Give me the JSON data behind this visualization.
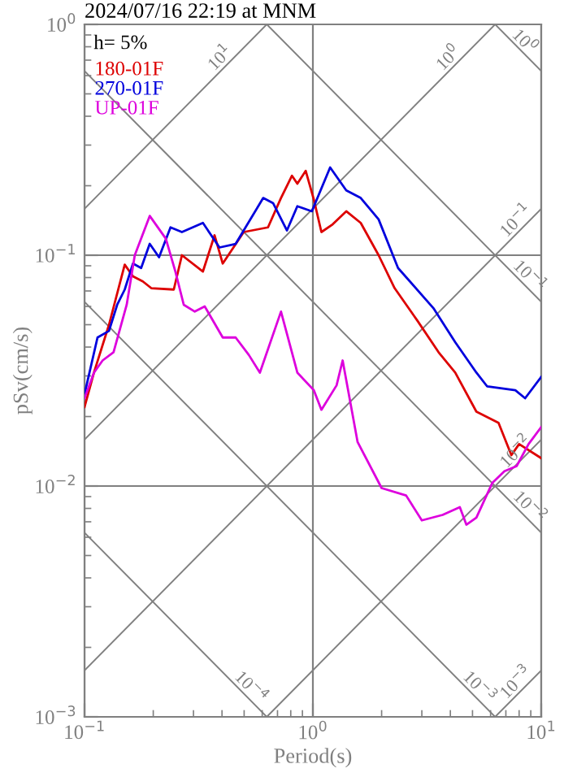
{
  "chart_data": {
    "type": "line",
    "title": "2024/07/16 22:19 at MNM",
    "xlabel": "Period(s)",
    "ylabel": "pSv(cm/s)",
    "log": "xy",
    "grid": true,
    "legend": "top left",
    "line_style": "solid",
    "marker": "none",
    "xlim": [
      0.1,
      10
    ],
    "ylim": [
      0.001,
      1
    ],
    "xticks": [
      {
        "value": 0.1,
        "label": "10$^{−1}$"
      },
      {
        "value": 1,
        "label": "10$^{0}$"
      },
      {
        "value": 10,
        "label": "10$^{1}$"
      }
    ],
    "yticks": [
      {
        "value": 0.001,
        "label": "10$^{−3}$"
      },
      {
        "value": 0.01,
        "label": "10$^{−2}$"
      },
      {
        "value": 0.1,
        "label": "10$^{−1}$"
      },
      {
        "value": 1,
        "label": "10$^{0}$"
      }
    ],
    "annotations": [
      "h= 5%",
      {
        "text": "10$^{1}$",
        "x": 0.42,
        "y": 0.67
      },
      {
        "text": "10$^{0}$",
        "x": 4.2,
        "y": 0.67
      },
      {
        "text": "10$^{0}$",
        "x": 7.9,
        "y": 0.79
      },
      {
        "text": "10$^{−1}$",
        "x": 8.3,
        "y": 0.132
      },
      {
        "text": "10$^{−1}$",
        "x": 8.3,
        "y": 0.076
      },
      {
        "text": "10$^{−2}$",
        "x": 8.3,
        "y": 0.0132
      },
      {
        "text": "10$^{−2}$",
        "x": 8.3,
        "y": 0.0076
      },
      {
        "text": "10$^{−4}$",
        "x": 0.5,
        "y": 0.00126
      },
      {
        "text": "10$^{−3}$",
        "x": 5.0,
        "y": 0.00126
      },
      {
        "text": "10$^{−3}$",
        "x": 8.3,
        "y": 0.00132
      }
    ],
    "series": [
      {
        "color": "#808080",
        "x": [
          6.283,
          10
        ],
        "values": [
          0.001,
          0.00159
        ]
      },
      {
        "color": "#808080",
        "x": [
          0.6283,
          10
        ],
        "values": [
          0.001,
          0.0159
        ]
      },
      {
        "color": "#808080",
        "x": [
          0.1,
          10
        ],
        "values": [
          0.00159,
          0.159
        ]
      },
      {
        "color": "#808080",
        "x": [
          0.1,
          6.283
        ],
        "values": [
          0.0159,
          1
        ]
      },
      {
        "color": "#808080",
        "x": [
          0.1,
          0.6283
        ],
        "values": [
          0.159,
          1
        ]
      },
      {
        "color": "#808080",
        "x": [
          0.1,
          0.6283
        ],
        "values": [
          0.00628,
          0.001
        ]
      },
      {
        "color": "#808080",
        "x": [
          0.1,
          6.283
        ],
        "values": [
          0.0628,
          0.001
        ]
      },
      {
        "color": "#808080",
        "x": [
          0.1,
          10
        ],
        "values": [
          0.628,
          0.00628
        ]
      },
      {
        "color": "#808080",
        "x": [
          0.6283,
          10
        ],
        "values": [
          1,
          0.0628
        ]
      },
      {
        "color": "#808080",
        "x": [
          6.283,
          10
        ],
        "values": [
          1,
          0.628
        ]
      },
      {
        "name": "180-01F",
        "color": "#dd0000",
        "x": [
          0.1,
          0.11,
          0.128,
          0.15,
          0.163,
          0.18,
          0.196,
          0.246,
          0.267,
          0.33,
          0.371,
          0.403,
          0.498,
          0.636,
          0.725,
          0.81,
          0.855,
          0.93,
          1.01,
          1.09,
          1.22,
          1.4,
          1.62,
          1.94,
          2.28,
          2.87,
          3.55,
          4.2,
          5.2,
          6.5,
          7.4,
          8.0,
          10
        ],
        "values": [
          0.022,
          0.031,
          0.05,
          0.091,
          0.081,
          0.077,
          0.072,
          0.071,
          0.1,
          0.085,
          0.122,
          0.092,
          0.126,
          0.132,
          0.177,
          0.221,
          0.204,
          0.232,
          0.174,
          0.126,
          0.136,
          0.155,
          0.138,
          0.1,
          0.072,
          0.052,
          0.038,
          0.031,
          0.021,
          0.0188,
          0.0136,
          0.0152,
          0.0132
        ]
      },
      {
        "name": "270-01F",
        "color": "#0000dd",
        "x": [
          0.1,
          0.114,
          0.128,
          0.139,
          0.15,
          0.163,
          0.177,
          0.193,
          0.212,
          0.238,
          0.267,
          0.33,
          0.39,
          0.459,
          0.606,
          0.67,
          0.77,
          0.855,
          0.99,
          1.19,
          1.4,
          1.62,
          1.94,
          2.36,
          3.37,
          4.2,
          5.2,
          5.8,
          7.7,
          8.5,
          10
        ],
        "values": [
          0.025,
          0.044,
          0.047,
          0.061,
          0.071,
          0.092,
          0.088,
          0.112,
          0.098,
          0.132,
          0.126,
          0.138,
          0.108,
          0.112,
          0.177,
          0.168,
          0.128,
          0.163,
          0.155,
          0.24,
          0.191,
          0.177,
          0.143,
          0.088,
          0.059,
          0.042,
          0.031,
          0.027,
          0.026,
          0.024,
          0.0297
        ]
      },
      {
        "name": "UP-01F",
        "color": "#dd00dd",
        "x": [
          0.1,
          0.11,
          0.12,
          0.134,
          0.153,
          0.166,
          0.193,
          0.227,
          0.25,
          0.272,
          0.304,
          0.336,
          0.403,
          0.459,
          0.524,
          0.586,
          0.725,
          0.855,
          1.01,
          1.09,
          1.27,
          1.35,
          1.57,
          2.0,
          2.56,
          3.0,
          3.7,
          4.4,
          4.7,
          5.2,
          6.1,
          6.9,
          7.8,
          8.8,
          10
        ],
        "values": [
          0.024,
          0.031,
          0.035,
          0.038,
          0.061,
          0.1,
          0.148,
          0.118,
          0.085,
          0.061,
          0.057,
          0.06,
          0.044,
          0.044,
          0.037,
          0.031,
          0.057,
          0.031,
          0.026,
          0.0214,
          0.0273,
          0.035,
          0.0155,
          0.0098,
          0.0091,
          0.0071,
          0.0075,
          0.0081,
          0.0068,
          0.0073,
          0.0103,
          0.0116,
          0.0122,
          0.0152,
          0.018
        ]
      }
    ]
  }
}
